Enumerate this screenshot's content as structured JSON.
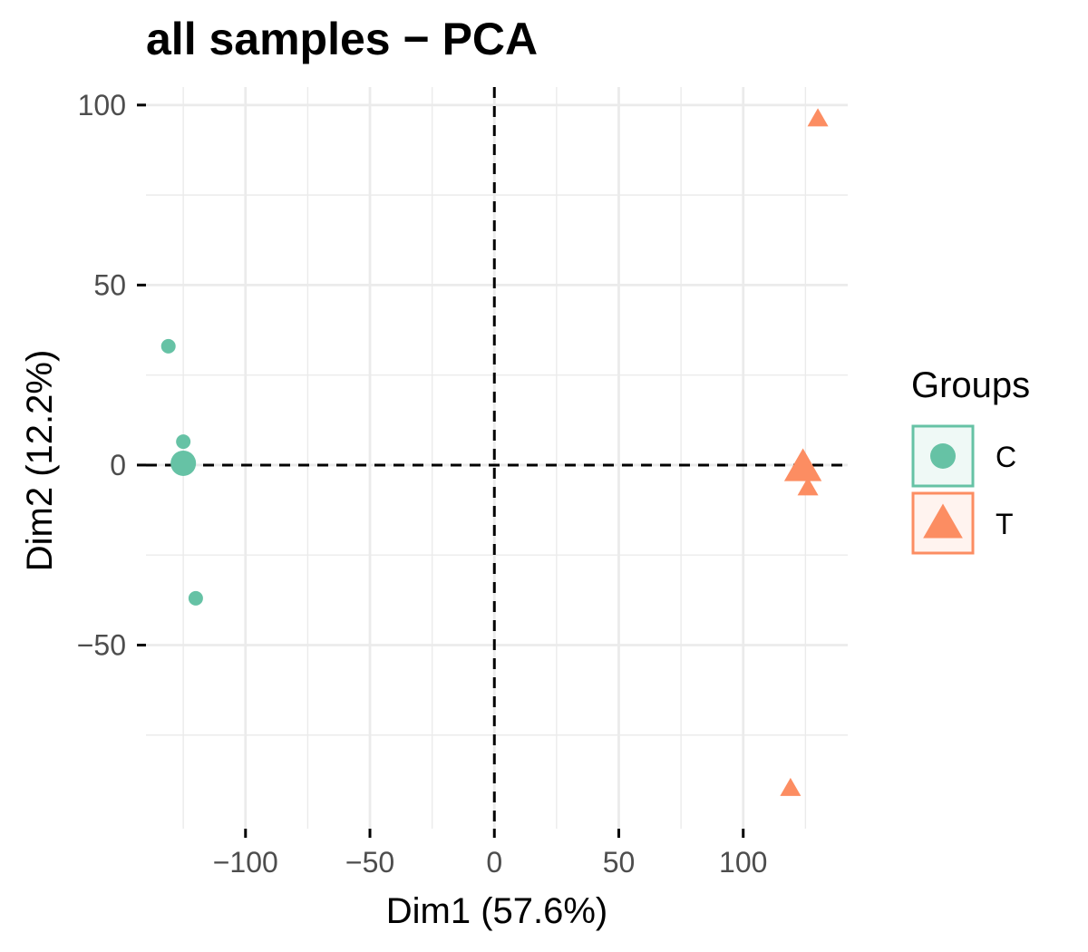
{
  "chart_data": {
    "type": "scatter",
    "title": "all samples − PCA",
    "xlabel": "Dim1 (57.6%)",
    "ylabel": "Dim2 (12.2%)",
    "xlim": [
      -140,
      142
    ],
    "ylim": [
      -101,
      105
    ],
    "x_ticks": [
      -100,
      -50,
      0,
      50,
      100
    ],
    "x_tick_labels": [
      "−100",
      "−50",
      "0",
      "50",
      "100"
    ],
    "y_ticks": [
      -50,
      0,
      50,
      100
    ],
    "y_tick_labels": [
      "−50",
      "0",
      "50",
      "100"
    ],
    "x_minor_ticks": [
      -125,
      -75,
      -25,
      25,
      75,
      125
    ],
    "y_minor_ticks": [
      -75,
      -25,
      25,
      75
    ],
    "grid": true,
    "reference_lines": {
      "x": 0,
      "y": 0,
      "style": "dashed"
    },
    "legend": {
      "title": "Groups",
      "position": "right"
    },
    "series": [
      {
        "name": "C",
        "shape": "circle",
        "color": "#66c2a5",
        "points": [
          {
            "x": -131,
            "y": 33
          },
          {
            "x": -125,
            "y": 6.5
          },
          {
            "x": -120,
            "y": -37
          },
          {
            "x": -125,
            "y": 0.5
          }
        ],
        "centroid": {
          "x": -125,
          "y": 0.5
        }
      },
      {
        "name": "T",
        "shape": "triangle",
        "color": "#fc8d62",
        "points": [
          {
            "x": 130,
            "y": 96
          },
          {
            "x": 124,
            "y": 1.5
          },
          {
            "x": 126,
            "y": -6.5
          },
          {
            "x": 119,
            "y": -90
          },
          {
            "x": 124,
            "y": -1
          }
        ],
        "centroid": {
          "x": 124,
          "y": -1
        }
      }
    ]
  }
}
